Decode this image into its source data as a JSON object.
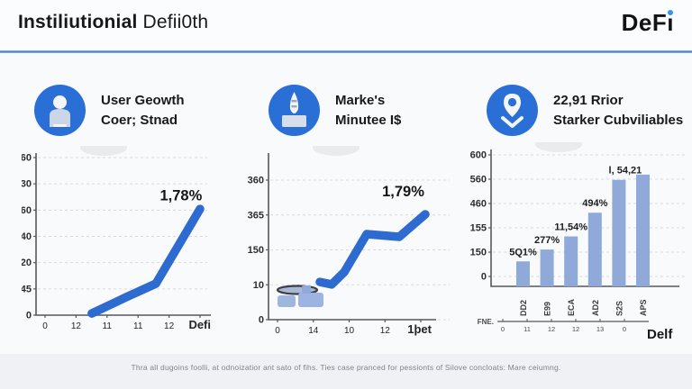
{
  "header": {
    "title_bold": "Instiliutionial",
    "title_rest": "Defii0th",
    "logo_prefix": "DeF",
    "logo_i_stem": "ı"
  },
  "panels": [
    {
      "icon": "user-icon",
      "heading_line1": "User Geowth",
      "heading_line2": "Coer; Stnad"
    },
    {
      "icon": "rocket-icon",
      "heading_line1": "Marke's",
      "heading_line2": "Minutee I$"
    },
    {
      "icon": "location-pin-icon",
      "heading_line1": "22,91 Rrior",
      "heading_line2": "Starker Cubviliables"
    }
  ],
  "footer": {
    "text": "Thra all dugoins foolli, at odnoizatior ant sato of fihs. Ties case pranced for pessionts of Silove concloats: Mare ceiumng."
  },
  "colors": {
    "accent_blue": "#2a6fd6",
    "line_blue": "#2e6bd0",
    "bar_blue": "#8fa9d9",
    "divider_blue": "#4a7fc4",
    "logo_dot_blue": "#2f9bf0",
    "grid_gray": "#d8dadc",
    "axis_gray": "#57585b"
  },
  "chart_data": [
    {
      "type": "line",
      "title": "User Geowth Coer; Stnad",
      "annotation": "1,78%",
      "annotation_pos": [
        0.97,
        0.27
      ],
      "y_ticks": [
        "60",
        "30",
        "60",
        "40",
        "20",
        "45",
        "0"
      ],
      "x_ticks": [
        "0",
        "12",
        "11",
        "11",
        "12"
      ],
      "x_end_label": "Defi",
      "points": [
        [
          0.326,
          0.989
        ],
        [
          0.526,
          0.886
        ],
        [
          0.7,
          0.8
        ],
        [
          0.958,
          0.326
        ]
      ],
      "grid": true,
      "legend": "none"
    },
    {
      "type": "line",
      "title": "Marke's Minutee I$",
      "annotation": "1,79%",
      "annotation_pos": [
        0.95,
        0.24
      ],
      "y_ticks": [
        "360",
        "365",
        "150",
        "10",
        "0"
      ],
      "x_ticks": [
        "0",
        "14",
        "10",
        "12"
      ],
      "x_end_label": "1þet",
      "points": [
        [
          0.313,
          0.767
        ],
        [
          0.385,
          0.783
        ],
        [
          0.462,
          0.706
        ],
        [
          0.599,
          0.472
        ],
        [
          0.797,
          0.489
        ],
        [
          0.956,
          0.35
        ]
      ],
      "grid": true,
      "legend": "none",
      "has_doodle": true
    },
    {
      "type": "bar",
      "title": "22,91 Rrior Starker Cubviliables",
      "y_ticks": [
        "600",
        "560",
        "460",
        "155",
        "150",
        "0"
      ],
      "bars": [
        {
          "label": "DD2",
          "value_label": "5Q1%",
          "height": 0.19,
          "label_dx": 0
        },
        {
          "label": "E99",
          "value_label": "277%",
          "height": 0.28,
          "label_dx": 0
        },
        {
          "label": "ECA",
          "value_label": "11,54%",
          "height": 0.38,
          "label_dx": 0
        },
        {
          "label": "AD2",
          "value_label": "494%",
          "height": 0.56,
          "label_dx": 0
        },
        {
          "label": "S2S",
          "value_label": "l, 54,21",
          "height": 0.81,
          "label_dx": 7
        },
        {
          "label": "APS",
          "value_label": "",
          "height": 0.85,
          "label_dx": 0
        }
      ],
      "axis2_label": "FNE.",
      "axis2_ticks": [
        "0",
        "11",
        "12",
        "12",
        "13",
        "0"
      ],
      "x_end_label": "Delf",
      "grid": true,
      "legend": "none"
    }
  ]
}
